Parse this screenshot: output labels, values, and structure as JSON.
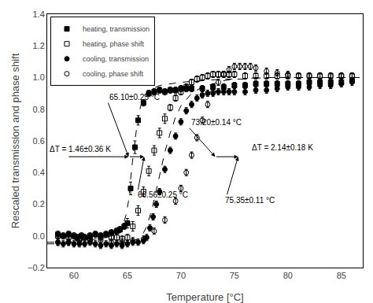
{
  "chart_data": {
    "type": "scatter",
    "xlabel": "Temperature [°C]",
    "ylabel": "Rescaled transmission and phase shift",
    "xlim": [
      57.5,
      87
    ],
    "ylim": [
      -0.2,
      1.4
    ],
    "xticks": [
      60,
      65,
      70,
      75,
      80,
      85
    ],
    "yticks": [
      {
        "value": -0.2,
        "label": "−0.2"
      },
      {
        "value": 0,
        "label": "0.0"
      },
      0.2,
      0.4,
      0.6,
      0.8,
      {
        "value": 1,
        "label": "1.0"
      },
      1.2,
      1.4
    ],
    "grid": false,
    "legend": "upper left",
    "series": [
      {
        "type": "line",
        "color": "black",
        "line_style": "dashed",
        "x": [
          57.5,
          58.0,
          59.0,
          60.0,
          61.0,
          62.0,
          63.0,
          63.5,
          64.0,
          64.3,
          64.6,
          64.9,
          65.1,
          65.3,
          65.6,
          65.9,
          66.2,
          66.5,
          67.0,
          68.0,
          69.0,
          70.0,
          72.0,
          74.0,
          76.0,
          78.0,
          80.0,
          82.0,
          84.0,
          86.0,
          87.0
        ],
        "values": [
          -0.04,
          -0.04,
          -0.04,
          -0.03,
          -0.03,
          -0.02,
          -0.01,
          0.0,
          0.02,
          0.04,
          0.07,
          0.14,
          0.22,
          0.36,
          0.55,
          0.7,
          0.81,
          0.88,
          0.92,
          0.95,
          0.96,
          0.97,
          0.98,
          0.99,
          0.99,
          1.0,
          1.0,
          1.0,
          1.0,
          1.0,
          1.0
        ]
      },
      {
        "type": "line",
        "color": "black",
        "line_style": "dashed",
        "x": [
          57.5,
          58.0,
          59.0,
          60.0,
          61.0,
          62.0,
          63.0,
          64.0,
          65.0,
          65.5,
          66.0,
          66.3,
          66.5,
          66.8,
          67.0,
          67.3,
          67.6,
          68.0,
          68.5,
          69.0,
          69.5,
          70.0,
          71.0,
          72.0,
          73.0,
          74.0,
          75.0,
          76.0,
          77.0,
          78.0,
          80.0,
          82.0,
          84.0,
          86.0,
          87.0
        ],
        "values": [
          -0.05,
          -0.05,
          -0.05,
          -0.05,
          -0.05,
          -0.05,
          -0.05,
          -0.05,
          -0.04,
          -0.03,
          -0.02,
          0.0,
          0.02,
          0.06,
          0.1,
          0.17,
          0.26,
          0.38,
          0.53,
          0.65,
          0.75,
          0.82,
          0.9,
          0.94,
          0.96,
          0.98,
          0.99,
          0.99,
          1.0,
          1.0,
          1.0,
          1.0,
          1.0,
          1.0,
          1.0
        ]
      },
      {
        "name": "heating, transmission",
        "type": "scatter",
        "color": "black",
        "marker": "square",
        "x": [
          58.5,
          59.0,
          59.5,
          60.0,
          60.3,
          60.7,
          61.0,
          61.5,
          62.0,
          62.5,
          63.0,
          63.5,
          64.0,
          64.3,
          64.7,
          65.0,
          65.3,
          65.7,
          66.0,
          66.5,
          67.0,
          67.5,
          68.0,
          68.5,
          69.0,
          69.5,
          70.0,
          70.5,
          71.0,
          72.0,
          73.0,
          74.0,
          75.0,
          76.0,
          77.0,
          78.0,
          79.0,
          80.0,
          81.0,
          82.0,
          83.0,
          84.0,
          85.0,
          86.0
        ],
        "values": [
          0.01,
          0.0,
          0.01,
          0.0,
          -0.01,
          0.0,
          -0.01,
          0.0,
          0.01,
          0.0,
          0.01,
          0.02,
          0.03,
          0.04,
          0.06,
          0.08,
          0.3,
          0.56,
          0.73,
          0.84,
          0.9,
          0.91,
          0.92,
          0.91,
          0.92,
          0.92,
          0.93,
          0.93,
          0.93,
          0.93,
          0.94,
          0.94,
          0.95,
          0.95,
          0.96,
          0.96,
          0.96,
          0.96,
          0.96,
          0.97,
          0.97,
          0.97,
          0.97,
          0.98
        ],
        "errors": [
          0.02,
          0.02,
          0.02,
          0.02,
          0.02,
          0.02,
          0.02,
          0.02,
          0.02,
          0.02,
          0.02,
          0.02,
          0.02,
          0.02,
          0.02,
          0.03,
          0.04,
          0.04,
          0.03,
          0.02,
          0.02,
          0.02,
          0.02,
          0.02,
          0.02,
          0.02,
          0.02,
          0.02,
          0.02,
          0.02,
          0.02,
          0.02,
          0.02,
          0.02,
          0.02,
          0.02,
          0.02,
          0.02,
          0.02,
          0.02,
          0.02,
          0.02,
          0.02,
          0.02
        ]
      },
      {
        "name": "heating, phase shift",
        "type": "scatter",
        "color": "black",
        "marker": "square-open",
        "x": [
          58.5,
          59.5,
          60.5,
          61.5,
          62.5,
          63.5,
          64.0,
          64.5,
          65.0,
          65.5,
          66.0,
          66.5,
          67.0,
          67.5,
          68.0,
          68.5,
          69.0,
          69.5,
          70.0,
          70.5,
          71.0,
          71.5,
          72.0,
          72.5,
          73.0,
          73.5,
          74.0,
          74.5,
          75.0,
          76.0,
          77.0,
          78.0,
          79.0,
          80.0,
          81.0,
          82.0,
          83.0,
          84.0,
          85.0,
          86.0
        ],
        "values": [
          0.0,
          -0.01,
          -0.02,
          -0.02,
          -0.01,
          -0.01,
          -0.01,
          -0.02,
          -0.01,
          0.06,
          0.16,
          0.28,
          0.41,
          0.54,
          0.65,
          0.74,
          0.81,
          0.87,
          0.91,
          0.94,
          0.97,
          0.99,
          1.0,
          1.01,
          1.02,
          1.02,
          1.02,
          1.02,
          1.02,
          1.01,
          1.01,
          1.01,
          1.01,
          1.01,
          1.01,
          1.01,
          1.01,
          1.01,
          1.01,
          1.01
        ],
        "errors": [
          0.02,
          0.02,
          0.02,
          0.02,
          0.02,
          0.02,
          0.02,
          0.02,
          0.02,
          0.03,
          0.03,
          0.03,
          0.03,
          0.03,
          0.03,
          0.03,
          0.02,
          0.02,
          0.02,
          0.02,
          0.02,
          0.02,
          0.02,
          0.02,
          0.02,
          0.02,
          0.02,
          0.02,
          0.02,
          0.02,
          0.02,
          0.02,
          0.02,
          0.02,
          0.02,
          0.02,
          0.02,
          0.02,
          0.02,
          0.02
        ]
      },
      {
        "name": "cooling, transmission",
        "type": "scatter",
        "color": "black",
        "marker": "circle",
        "x": [
          58.5,
          59.0,
          59.5,
          60.0,
          60.5,
          61.0,
          61.5,
          62.0,
          62.5,
          63.0,
          63.5,
          64.0,
          64.5,
          65.0,
          65.5,
          66.0,
          66.5,
          66.8,
          67.1,
          67.4,
          67.7,
          68.0,
          68.5,
          69.0,
          69.5,
          70.0,
          70.5,
          71.0,
          71.5,
          72.0,
          72.5,
          73.0,
          73.5,
          74.0,
          74.5,
          75.0,
          76.0,
          77.0,
          78.0,
          79.0,
          80.0,
          81.0,
          82.0,
          83.0,
          84.0,
          85.0,
          86.0
        ],
        "values": [
          -0.04,
          -0.05,
          -0.04,
          -0.05,
          -0.05,
          -0.05,
          -0.04,
          -0.05,
          -0.06,
          -0.05,
          -0.06,
          -0.05,
          -0.06,
          -0.05,
          -0.04,
          -0.04,
          -0.03,
          -0.01,
          0.05,
          0.12,
          0.2,
          0.28,
          0.42,
          0.54,
          0.63,
          0.72,
          0.79,
          0.83,
          0.87,
          0.89,
          0.9,
          0.9,
          0.91,
          0.91,
          0.91,
          0.91,
          0.91,
          0.92,
          0.92,
          0.93,
          0.94,
          0.94,
          0.94,
          0.95,
          0.95,
          0.96,
          0.97
        ],
        "errors": [
          0.02,
          0.02,
          0.02,
          0.02,
          0.02,
          0.02,
          0.02,
          0.02,
          0.02,
          0.02,
          0.02,
          0.02,
          0.02,
          0.02,
          0.02,
          0.02,
          0.02,
          0.02,
          0.02,
          0.02,
          0.02,
          0.02,
          0.02,
          0.02,
          0.02,
          0.02,
          0.02,
          0.02,
          0.02,
          0.02,
          0.02,
          0.02,
          0.02,
          0.02,
          0.02,
          0.02,
          0.02,
          0.02,
          0.02,
          0.02,
          0.02,
          0.02,
          0.02,
          0.02,
          0.02,
          0.02,
          0.02
        ]
      },
      {
        "name": "cooling, phase shift",
        "type": "scatter",
        "color": "black",
        "marker": "circle-open",
        "x": [
          58.5,
          59.5,
          60.5,
          61.5,
          62.5,
          63.5,
          64.5,
          65.5,
          66.5,
          67.5,
          68.5,
          69.5,
          70.0,
          70.5,
          71.0,
          71.5,
          72.0,
          72.5,
          73.0,
          73.5,
          74.0,
          74.5,
          75.0,
          75.5,
          76.0,
          76.5,
          77.0,
          78.0,
          79.0,
          80.0,
          81.0,
          82.0,
          83.0,
          84.0,
          85.0,
          86.0
        ],
        "values": [
          -0.04,
          -0.04,
          -0.03,
          -0.03,
          -0.03,
          -0.04,
          -0.04,
          -0.03,
          -0.02,
          0.03,
          0.1,
          0.22,
          0.3,
          0.4,
          0.51,
          0.62,
          0.73,
          0.83,
          0.91,
          0.97,
          1.02,
          1.05,
          1.07,
          1.07,
          1.07,
          1.07,
          1.06,
          1.04,
          1.03,
          1.02,
          1.01,
          1.01,
          1.01,
          1.01,
          1.01,
          1.01
        ],
        "errors": [
          0.02,
          0.02,
          0.02,
          0.02,
          0.02,
          0.02,
          0.02,
          0.02,
          0.02,
          0.02,
          0.02,
          0.02,
          0.02,
          0.02,
          0.02,
          0.02,
          0.02,
          0.02,
          0.02,
          0.02,
          0.02,
          0.02,
          0.02,
          0.02,
          0.02,
          0.02,
          0.02,
          0.02,
          0.02,
          0.02,
          0.02,
          0.02,
          0.02,
          0.02,
          0.02,
          0.02
        ]
      }
    ],
    "annotations": [
      {
        "text": "65.10±0.25 °C",
        "x": 65.1,
        "y": 0.5,
        "text_x": 63.2,
        "text_y": 0.84
      },
      {
        "text": "73.20±0.14 °C",
        "x": 73.2,
        "y": 0.5,
        "text_x": 70.8,
        "text_y": 0.68
      },
      {
        "text": "66.56±0.25 °C",
        "x": 66.56,
        "y": 0.5,
        "text_x": 65.8,
        "text_y": 0.22
      },
      {
        "text": "75.35±0.11 °C",
        "x": 75.35,
        "y": 0.5,
        "text_x": 74.0,
        "text_y": 0.19
      },
      {
        "text": "ΔT = 1.46±0.36 K",
        "x": 57.6,
        "y": 0.51
      },
      {
        "text": "ΔT = 2.14±0.18 K",
        "x": 76.5,
        "y": 0.52
      }
    ],
    "arrows": [
      {
        "from_x": 59.4,
        "from_y": 0.5,
        "x": 65.1,
        "y": 0.5
      },
      {
        "from_x": 65.1,
        "from_y": 0.5,
        "x": 66.56,
        "y": 0.5
      },
      {
        "from_x": 73.2,
        "from_y": 0.5,
        "x": 75.35,
        "y": 0.5
      }
    ]
  }
}
